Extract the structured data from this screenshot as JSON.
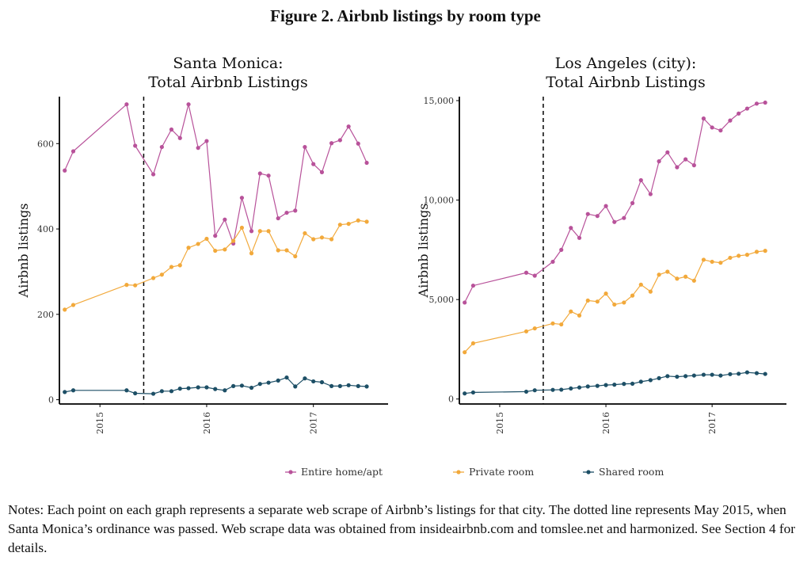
{
  "figure_title": "Figure 2. Airbnb listings by room type",
  "notes": "Notes: Each point on each graph represents a separate web scrape of Airbnb’s listings for that city. The dotted line represents May 2015, when Santa Monica’s ordinance was passed. Web scrape data was obtained from insideairbnb.com and tomslee.net and harmonized. See Section 4 for details.",
  "colors": {
    "entire": "#b8529a",
    "private": "#f2a93b",
    "shared": "#1d4f66"
  },
  "legend": [
    {
      "key": "entire",
      "label": "Entire home/apt"
    },
    {
      "key": "private",
      "label": "Private room"
    },
    {
      "key": "shared",
      "label": "Shared room"
    }
  ],
  "chart_data": [
    {
      "type": "line",
      "title_line1": "Santa Monica:",
      "title_line2": "Total Airbnb Listings",
      "ylabel": "Airbnb listings",
      "xlim": [
        2014.62,
        2017.7
      ],
      "ylim": [
        -10,
        710
      ],
      "yticks": [
        0,
        200,
        400,
        600
      ],
      "ytick_labels": [
        "0",
        "200",
        "400",
        "600"
      ],
      "xticks": [
        2015,
        2016,
        2017
      ],
      "xtick_labels": [
        "2015",
        "2016",
        "2017"
      ],
      "vline": 2015.41,
      "x": [
        2014.67,
        2014.75,
        2015.25,
        2015.33,
        2015.5,
        2015.58,
        2015.67,
        2015.75,
        2015.83,
        2015.92,
        2016.0,
        2016.08,
        2016.17,
        2016.25,
        2016.33,
        2016.42,
        2016.5,
        2016.58,
        2016.67,
        2016.75,
        2016.83,
        2016.92,
        2017.0,
        2017.08,
        2017.17,
        2017.25,
        2017.33,
        2017.42,
        2017.5
      ],
      "series": [
        {
          "key": "entire",
          "name": "Entire home/apt",
          "values": [
            537,
            582,
            692,
            595,
            528,
            592,
            633,
            613,
            692,
            590,
            606,
            384,
            422,
            366,
            473,
            395,
            530,
            525,
            425,
            438,
            443,
            592,
            552,
            533,
            601,
            608,
            640,
            600,
            555
          ]
        },
        {
          "key": "private",
          "name": "Private room",
          "values": [
            211,
            222,
            269,
            268,
            285,
            293,
            311,
            315,
            356,
            365,
            377,
            349,
            352,
            372,
            403,
            343,
            395,
            395,
            350,
            350,
            336,
            390,
            376,
            380,
            376,
            410,
            412,
            420,
            417
          ]
        },
        {
          "key": "shared",
          "name": "Shared room",
          "values": [
            18,
            22,
            22,
            15,
            14,
            20,
            20,
            26,
            27,
            29,
            29,
            25,
            22,
            32,
            33,
            28,
            37,
            40,
            45,
            52,
            31,
            50,
            43,
            41,
            32,
            32,
            34,
            32,
            31
          ]
        }
      ]
    },
    {
      "type": "line",
      "title_line1": "Los Angeles (city):",
      "title_line2": "Total Airbnb Listings",
      "ylabel": "Airbnb listings",
      "xlim": [
        2014.62,
        2017.7
      ],
      "ylim": [
        -250,
        15200
      ],
      "yticks": [
        0,
        5000,
        10000,
        15000
      ],
      "ytick_labels": [
        "0",
        "5,000",
        "10,000",
        "15,000"
      ],
      "xticks": [
        2015,
        2016,
        2017
      ],
      "xtick_labels": [
        "2015",
        "2016",
        "2017"
      ],
      "vline": 2015.41,
      "x": [
        2014.67,
        2014.75,
        2015.25,
        2015.33,
        2015.5,
        2015.58,
        2015.67,
        2015.75,
        2015.83,
        2015.92,
        2016.0,
        2016.08,
        2016.17,
        2016.25,
        2016.33,
        2016.42,
        2016.5,
        2016.58,
        2016.67,
        2016.75,
        2016.83,
        2016.92,
        2017.0,
        2017.08,
        2017.17,
        2017.25,
        2017.33,
        2017.42,
        2017.5
      ],
      "series": [
        {
          "key": "entire",
          "name": "Entire home/apt",
          "values": [
            4850,
            5700,
            6350,
            6200,
            6900,
            7500,
            8600,
            8100,
            9300,
            9200,
            9700,
            8900,
            9100,
            9850,
            11000,
            10300,
            11950,
            12400,
            11650,
            12050,
            11750,
            14100,
            13650,
            13500,
            14000,
            14350,
            14600,
            14850,
            14900
          ]
        },
        {
          "key": "private",
          "name": "Private room",
          "values": [
            2350,
            2800,
            3400,
            3550,
            3800,
            3750,
            4400,
            4200,
            4950,
            4900,
            5300,
            4750,
            4850,
            5200,
            5750,
            5400,
            6250,
            6400,
            6050,
            6150,
            5950,
            7000,
            6900,
            6850,
            7100,
            7200,
            7250,
            7400,
            7450
          ]
        },
        {
          "key": "shared",
          "name": "Shared room",
          "values": [
            280,
            330,
            370,
            440,
            460,
            470,
            530,
            580,
            630,
            660,
            700,
            720,
            760,
            770,
            870,
            950,
            1050,
            1150,
            1120,
            1150,
            1180,
            1220,
            1220,
            1180,
            1250,
            1270,
            1340,
            1300,
            1260
          ]
        }
      ]
    }
  ]
}
